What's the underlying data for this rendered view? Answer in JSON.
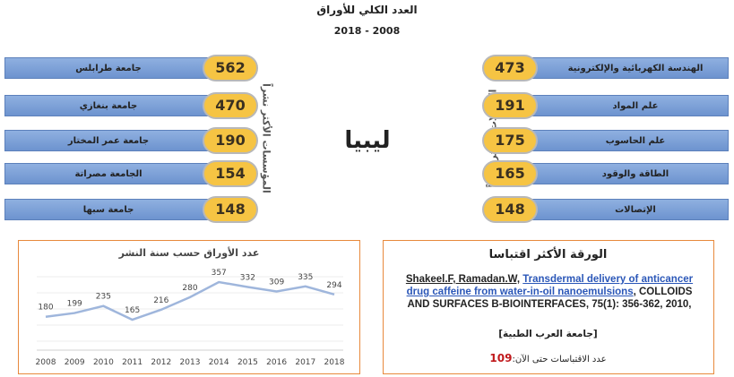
{
  "title": "العدد الكلي للأوراق",
  "period": "2018 - 2008",
  "country": "ليبيا",
  "institutions": {
    "label": "المؤسسات الأكثر نشراً",
    "items": [
      {
        "name": "جامعة طرابلس",
        "count": 562
      },
      {
        "name": "جامعة بنغازي",
        "count": 470
      },
      {
        "name": "جامعة عمر المختار",
        "count": 190
      },
      {
        "name": "الجامعة مصراتة",
        "count": 154
      },
      {
        "name": "جامعة سبها",
        "count": 148
      }
    ]
  },
  "fields": {
    "label": "المجالات الأكثر نشراً",
    "items": [
      {
        "name": "الهندسة الكهربائية والإلكترونية",
        "count": 473
      },
      {
        "name": "علم المواد",
        "count": 191
      },
      {
        "name": "علم الحاسوب",
        "count": 175
      },
      {
        "name": "الطاقة والوقود",
        "count": 165
      },
      {
        "name": "الإتصالات",
        "count": 148
      }
    ]
  },
  "chart_data": {
    "type": "line",
    "title": "عدد الأوراق حسب سنة النشر",
    "categories": [
      "2008",
      "2009",
      "2010",
      "2011",
      "2012",
      "2013",
      "2014",
      "2015",
      "2016",
      "2017",
      "2018"
    ],
    "values": [
      180,
      199,
      235,
      165,
      216,
      280,
      357,
      332,
      309,
      335,
      294
    ],
    "color": "#9fb6dc"
  },
  "top_paper": {
    "heading": "الورقة الأكثر اقتباسا",
    "authors": "Shakeel.F, Ramadan.W,",
    "title": "Transdermal delivery of anticancer drug caffeine from water-in-oil nanoemulsions",
    "source": ", COLLOIDS AND SURFACES B-BIOINTERFACES, 75(1): 356-362, 2010,",
    "affiliation": "[جامعة العرب الطبية]",
    "citations_label": "عدد الاقتباسات حتى الآن:",
    "citations": 109
  }
}
